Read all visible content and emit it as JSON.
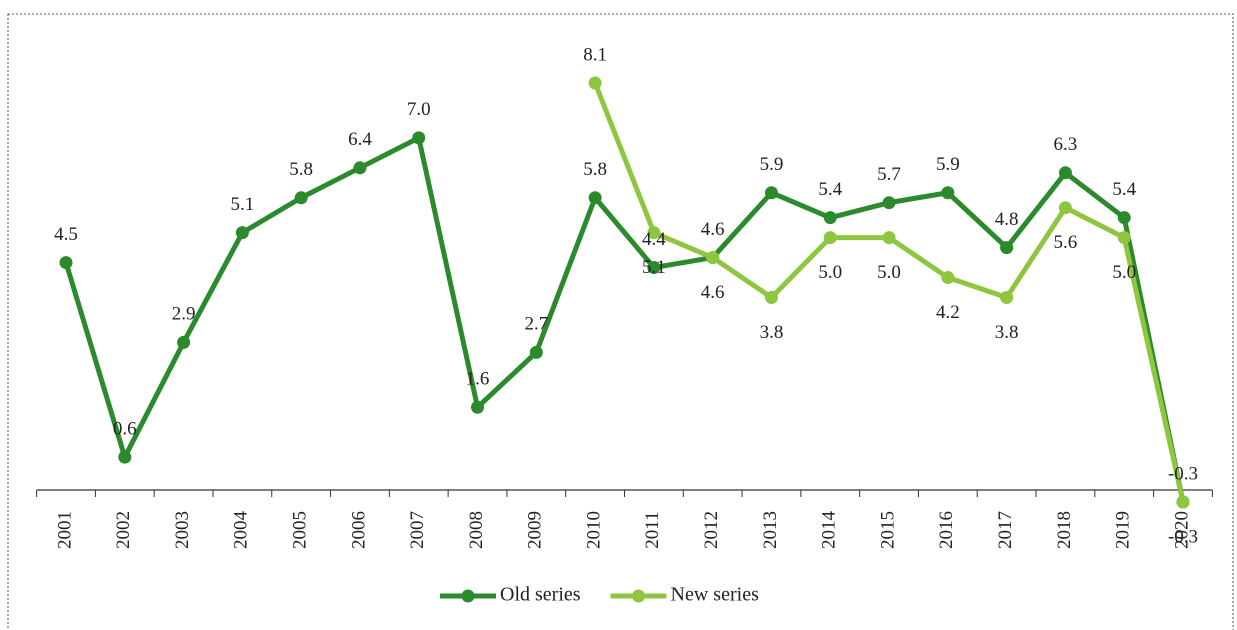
{
  "chart_data": {
    "type": "line",
    "categories": [
      "2001",
      "2002",
      "2003",
      "2004",
      "2005",
      "2006",
      "2007",
      "2008",
      "2009",
      "2010",
      "2011",
      "2012",
      "2013",
      "2014",
      "2015",
      "2016",
      "2017",
      "2018",
      "2019",
      "2020"
    ],
    "series": [
      {
        "name": "Old series",
        "color": "#2b8a2b",
        "values": [
          4.5,
          0.6,
          2.9,
          5.1,
          5.8,
          6.4,
          7.0,
          1.6,
          2.7,
          5.8,
          4.4,
          4.6,
          5.9,
          5.4,
          5.7,
          5.9,
          4.8,
          6.3,
          5.4,
          -0.3
        ],
        "value_labels": [
          "4.5",
          "0.6",
          "2.9",
          "5.1",
          "5.8",
          "6.4",
          "7.0",
          "1.6",
          "2.7",
          "5.8",
          "4.4",
          "4.6",
          "5.9",
          "5.4",
          "5.7",
          "5.9",
          "4.8",
          "6.3",
          "5.4",
          "-0.3"
        ]
      },
      {
        "name": "New series",
        "color": "#8ec63f",
        "values": [
          null,
          null,
          null,
          null,
          null,
          null,
          null,
          null,
          null,
          8.1,
          5.1,
          4.6,
          3.8,
          5.0,
          5.0,
          4.2,
          3.8,
          5.6,
          5.0,
          -0.3
        ],
        "value_labels": [
          null,
          null,
          null,
          null,
          null,
          null,
          null,
          null,
          null,
          "8.1",
          "5.1",
          "4.6",
          "3.8",
          "5.0",
          "5.0",
          "4.2",
          "3.8",
          "5.6",
          "5.0",
          "-0.3"
        ]
      }
    ],
    "legend": "bottom"
  }
}
